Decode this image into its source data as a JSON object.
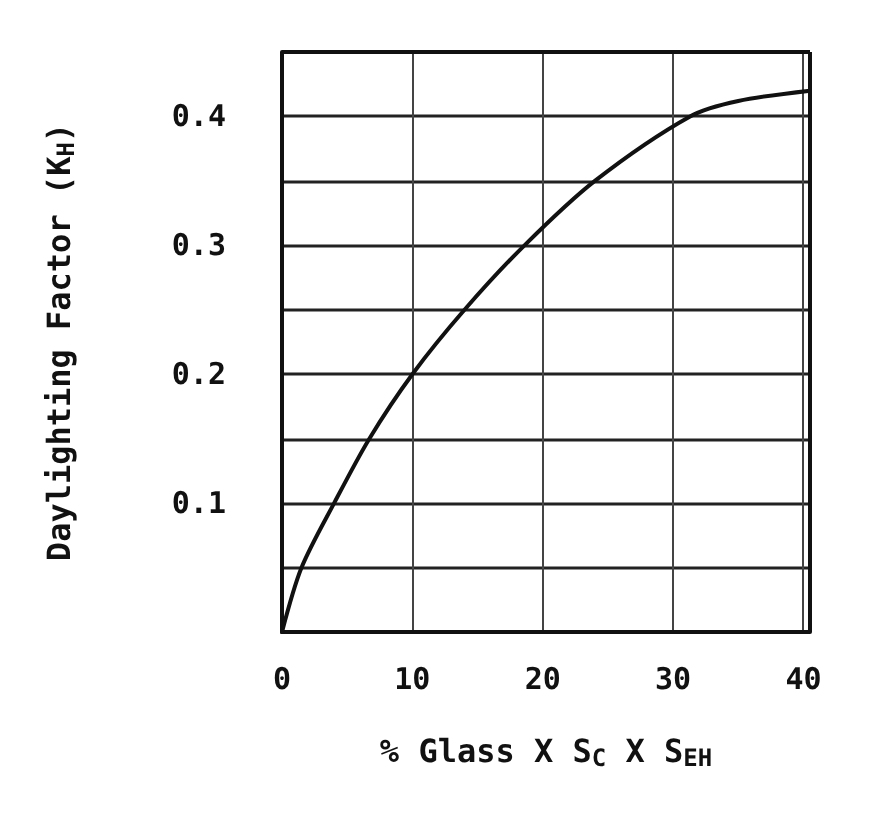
{
  "chart_data": {
    "type": "line",
    "xlabel": "% Glass X S$_{C}$ X S$_{EH}$",
    "ylabel": "Daylighting Factor (K$_{H}$)",
    "x": [
      0,
      1.5,
      4,
      6.7,
      10,
      14,
      18.6,
      24,
      31.3,
      35,
      40.5
    ],
    "series": [
      {
        "color": "#111111",
        "values": [
          0,
          0.05,
          0.1,
          0.15,
          0.2,
          0.25,
          0.3,
          0.35,
          0.4,
          0.412,
          0.42
        ]
      }
    ],
    "xlim": [
      0,
      40.5
    ],
    "xticks": [
      0,
      10,
      20,
      30,
      40
    ],
    "ylim": [
      0,
      0.45
    ],
    "yticks": [
      {
        "value": 0,
        "label": null
      },
      {
        "value": 0.05,
        "label": null
      },
      "0.1",
      {
        "value": 0.15,
        "label": null
      },
      0.2,
      {
        "value": 0.25,
        "label": null
      },
      0.3,
      {
        "value": 0.35,
        "label": null
      },
      0.4
    ],
    "grid": true,
    "marker": "none",
    "line_style": "solid"
  }
}
